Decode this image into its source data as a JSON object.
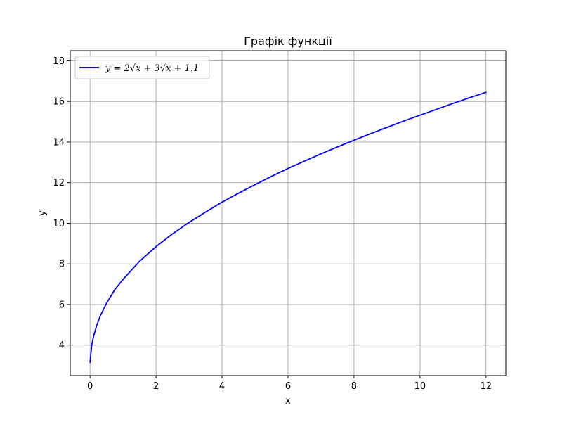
{
  "chart_data": {
    "type": "line",
    "title": "Графік функції",
    "xlabel": "x",
    "ylabel": "y",
    "xlim": [
      -0.6,
      12.6
    ],
    "ylim": [
      2.5,
      18.5
    ],
    "xticks": [
      0,
      2,
      4,
      6,
      8,
      10,
      12
    ],
    "yticks": [
      4,
      6,
      8,
      10,
      12,
      14,
      16,
      18
    ],
    "grid": true,
    "legend_position": "top-left",
    "series": [
      {
        "name": "y = 2√x + 3√x + 1.1",
        "color": "#0000ff",
        "x": [
          0,
          0.05,
          0.1,
          0.2,
          0.3,
          0.5,
          0.75,
          1,
          1.5,
          2,
          2.5,
          3,
          3.5,
          4,
          4.5,
          5,
          5.5,
          6,
          6.5,
          7,
          7.5,
          8,
          8.5,
          9,
          9.5,
          10,
          10.5,
          11,
          11.5,
          12
        ],
        "y": [
          3.15,
          3.99,
          4.39,
          4.96,
          5.4,
          6.07,
          6.73,
          7.24,
          8.13,
          8.85,
          9.48,
          10.04,
          10.55,
          11.04,
          11.48,
          11.9,
          12.31,
          12.7,
          13.06,
          13.42,
          13.76,
          14.09,
          14.41,
          14.72,
          15.03,
          15.32,
          15.61,
          15.9,
          16.18,
          16.45
        ]
      }
    ]
  },
  "legend": {
    "color": "#0000ff",
    "label": "y = 2√x + 3√x + 1.1"
  },
  "colors": {
    "line": "#0000ff",
    "grid": "#b0b0b0",
    "axes": "#000000",
    "background": "#ffffff"
  }
}
